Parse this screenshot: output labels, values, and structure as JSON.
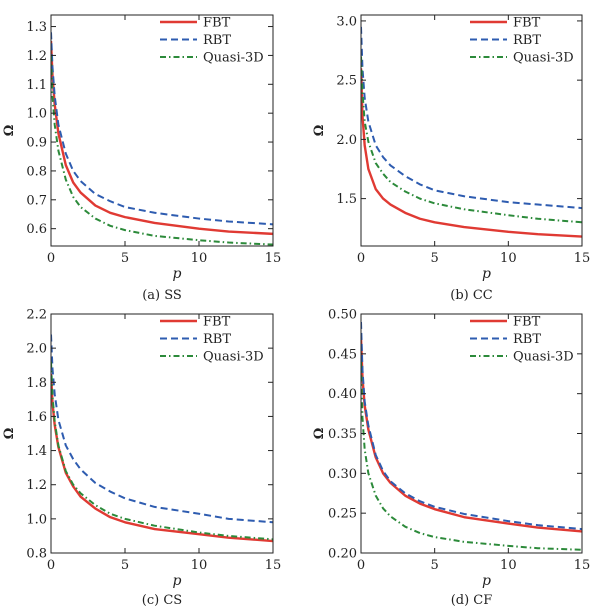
{
  "legend": {
    "fbt": "FBT",
    "rbt": "RBT",
    "quasi": "Quasi-3D"
  },
  "colors": {
    "fbt": "#e03a33",
    "rbt": "#2e5cb0",
    "quasi": "#2c8a3a"
  },
  "chart_data": [
    {
      "id": "ss",
      "type": "line",
      "caption": "(a) SS",
      "xlabel": "p",
      "ylabel": "Ω",
      "xlim": [
        0,
        15
      ],
      "ylim": [
        0.54,
        1.34
      ],
      "xticks": [
        0,
        5,
        10,
        15
      ],
      "yticks": [
        0.6,
        0.7,
        0.8,
        0.9,
        1.0,
        1.1,
        1.2,
        1.3
      ],
      "ytick_labels": [
        "0.6",
        "0.7",
        "0.8",
        "0.9",
        "1.0",
        "1.1",
        "1.2",
        "1.3"
      ],
      "legend_position": "top-right",
      "series": [
        {
          "key": "fbt",
          "name": "FBT",
          "style": "solid",
          "x": [
            0,
            0.1,
            0.25,
            0.5,
            1,
            1.5,
            2,
            3,
            4,
            5,
            7,
            10,
            12,
            15
          ],
          "y": [
            1.25,
            1.13,
            1.03,
            0.93,
            0.82,
            0.76,
            0.725,
            0.68,
            0.655,
            0.64,
            0.62,
            0.6,
            0.59,
            0.582
          ]
        },
        {
          "key": "rbt",
          "name": "RBT",
          "style": "dashed",
          "x": [
            0,
            0.1,
            0.25,
            0.5,
            1,
            1.5,
            2,
            3,
            4,
            5,
            7,
            10,
            12,
            15
          ],
          "y": [
            1.28,
            1.16,
            1.06,
            0.96,
            0.86,
            0.8,
            0.765,
            0.72,
            0.695,
            0.675,
            0.655,
            0.635,
            0.625,
            0.615
          ]
        },
        {
          "key": "quasi",
          "name": "Quasi-3D",
          "style": "dashdot",
          "x": [
            0,
            0.1,
            0.25,
            0.5,
            1,
            1.5,
            2,
            3,
            4,
            5,
            7,
            10,
            12,
            15
          ],
          "y": [
            1.2,
            1.06,
            0.96,
            0.87,
            0.77,
            0.71,
            0.675,
            0.635,
            0.61,
            0.595,
            0.575,
            0.56,
            0.552,
            0.545
          ]
        }
      ]
    },
    {
      "id": "cc",
      "type": "line",
      "caption": "(b) CC",
      "xlabel": "p",
      "ylabel": "Ω",
      "xlim": [
        0,
        15
      ],
      "ylim": [
        1.1,
        3.05
      ],
      "xticks": [
        0,
        5,
        10,
        15
      ],
      "yticks": [
        1.5,
        2.0,
        2.5,
        3.0
      ],
      "ytick_labels": [
        "1.5",
        "2.0",
        "2.5",
        "3.0"
      ],
      "legend_position": "top-right",
      "series": [
        {
          "key": "fbt",
          "name": "FBT",
          "style": "solid",
          "x": [
            0,
            0.1,
            0.25,
            0.5,
            1,
            1.5,
            2,
            3,
            4,
            5,
            7,
            10,
            12,
            15
          ],
          "y": [
            2.6,
            2.2,
            1.95,
            1.75,
            1.58,
            1.5,
            1.45,
            1.38,
            1.33,
            1.3,
            1.26,
            1.22,
            1.2,
            1.18
          ]
        },
        {
          "key": "rbt",
          "name": "RBT",
          "style": "dashed",
          "x": [
            0,
            0.1,
            0.25,
            0.5,
            1,
            1.5,
            2,
            3,
            4,
            5,
            7,
            10,
            12,
            15
          ],
          "y": [
            2.95,
            2.6,
            2.35,
            2.15,
            1.95,
            1.85,
            1.78,
            1.69,
            1.62,
            1.57,
            1.52,
            1.47,
            1.45,
            1.42
          ]
        },
        {
          "key": "quasi",
          "name": "Quasi-3D",
          "style": "dashdot",
          "x": [
            0,
            0.1,
            0.25,
            0.5,
            1,
            1.5,
            2,
            3,
            4,
            5,
            7,
            10,
            12,
            15
          ],
          "y": [
            2.7,
            2.4,
            2.15,
            1.98,
            1.8,
            1.71,
            1.64,
            1.56,
            1.5,
            1.46,
            1.41,
            1.36,
            1.33,
            1.3
          ]
        }
      ]
    },
    {
      "id": "cs",
      "type": "line",
      "caption": "(c) CS",
      "xlabel": "p",
      "ylabel": "Ω",
      "xlim": [
        0,
        15
      ],
      "ylim": [
        0.8,
        2.2
      ],
      "xticks": [
        0,
        5,
        10,
        15
      ],
      "yticks": [
        0.8,
        1.0,
        1.2,
        1.4,
        1.6,
        1.8,
        2.0,
        2.2
      ],
      "ytick_labels": [
        "0.8",
        "1.0",
        "1.2",
        "1.4",
        "1.6",
        "1.8",
        "2.0",
        "2.2"
      ],
      "legend_position": "top-right",
      "series": [
        {
          "key": "fbt",
          "name": "FBT",
          "style": "solid",
          "x": [
            0,
            0.1,
            0.25,
            0.5,
            1,
            1.5,
            2,
            3,
            4,
            5,
            7,
            10,
            12,
            15
          ],
          "y": [
            1.85,
            1.68,
            1.55,
            1.42,
            1.27,
            1.19,
            1.13,
            1.06,
            1.01,
            0.98,
            0.94,
            0.91,
            0.89,
            0.87
          ]
        },
        {
          "key": "rbt",
          "name": "RBT",
          "style": "dashed",
          "x": [
            0,
            0.1,
            0.25,
            0.5,
            1,
            1.5,
            2,
            3,
            4,
            5,
            7,
            10,
            12,
            15
          ],
          "y": [
            2.08,
            1.88,
            1.73,
            1.58,
            1.43,
            1.35,
            1.29,
            1.21,
            1.16,
            1.12,
            1.07,
            1.03,
            1.0,
            0.98
          ]
        },
        {
          "key": "quasi",
          "name": "Quasi-3D",
          "style": "dashdot",
          "x": [
            0,
            0.1,
            0.25,
            0.5,
            1,
            1.5,
            2,
            3,
            4,
            5,
            7,
            10,
            12,
            15
          ],
          "y": [
            1.92,
            1.72,
            1.57,
            1.43,
            1.28,
            1.2,
            1.15,
            1.08,
            1.03,
            1.0,
            0.96,
            0.92,
            0.9,
            0.88
          ]
        }
      ]
    },
    {
      "id": "cf",
      "type": "line",
      "caption": "(d) CF",
      "xlabel": "p",
      "ylabel": "Ω",
      "xlim": [
        0,
        15
      ],
      "ylim": [
        0.2,
        0.5
      ],
      "xticks": [
        0,
        5,
        10,
        15
      ],
      "yticks": [
        0.2,
        0.25,
        0.3,
        0.35,
        0.4,
        0.45,
        0.5
      ],
      "ytick_labels": [
        "0.20",
        "0.25",
        "0.30",
        "0.35",
        "0.40",
        "0.45",
        "0.50"
      ],
      "legend_position": "top-right",
      "series": [
        {
          "key": "fbt",
          "name": "FBT",
          "style": "solid",
          "x": [
            0,
            0.1,
            0.25,
            0.5,
            1,
            1.5,
            2,
            3,
            4,
            5,
            7,
            10,
            12,
            15
          ],
          "y": [
            0.47,
            0.42,
            0.385,
            0.355,
            0.32,
            0.3,
            0.288,
            0.272,
            0.262,
            0.255,
            0.245,
            0.237,
            0.232,
            0.227
          ]
        },
        {
          "key": "rbt",
          "name": "RBT",
          "style": "dashed",
          "x": [
            0,
            0.1,
            0.25,
            0.5,
            1,
            1.5,
            2,
            3,
            4,
            5,
            7,
            10,
            12,
            15
          ],
          "y": [
            0.49,
            0.43,
            0.39,
            0.36,
            0.323,
            0.303,
            0.29,
            0.275,
            0.265,
            0.258,
            0.249,
            0.24,
            0.235,
            0.23
          ]
        },
        {
          "key": "quasi",
          "name": "Quasi-3D",
          "style": "dashdot",
          "x": [
            0,
            0.1,
            0.25,
            0.5,
            1,
            1.5,
            2,
            3,
            4,
            5,
            7,
            10,
            12,
            15
          ],
          "y": [
            0.44,
            0.37,
            0.33,
            0.3,
            0.272,
            0.256,
            0.246,
            0.233,
            0.225,
            0.22,
            0.214,
            0.209,
            0.206,
            0.204
          ]
        }
      ]
    }
  ]
}
